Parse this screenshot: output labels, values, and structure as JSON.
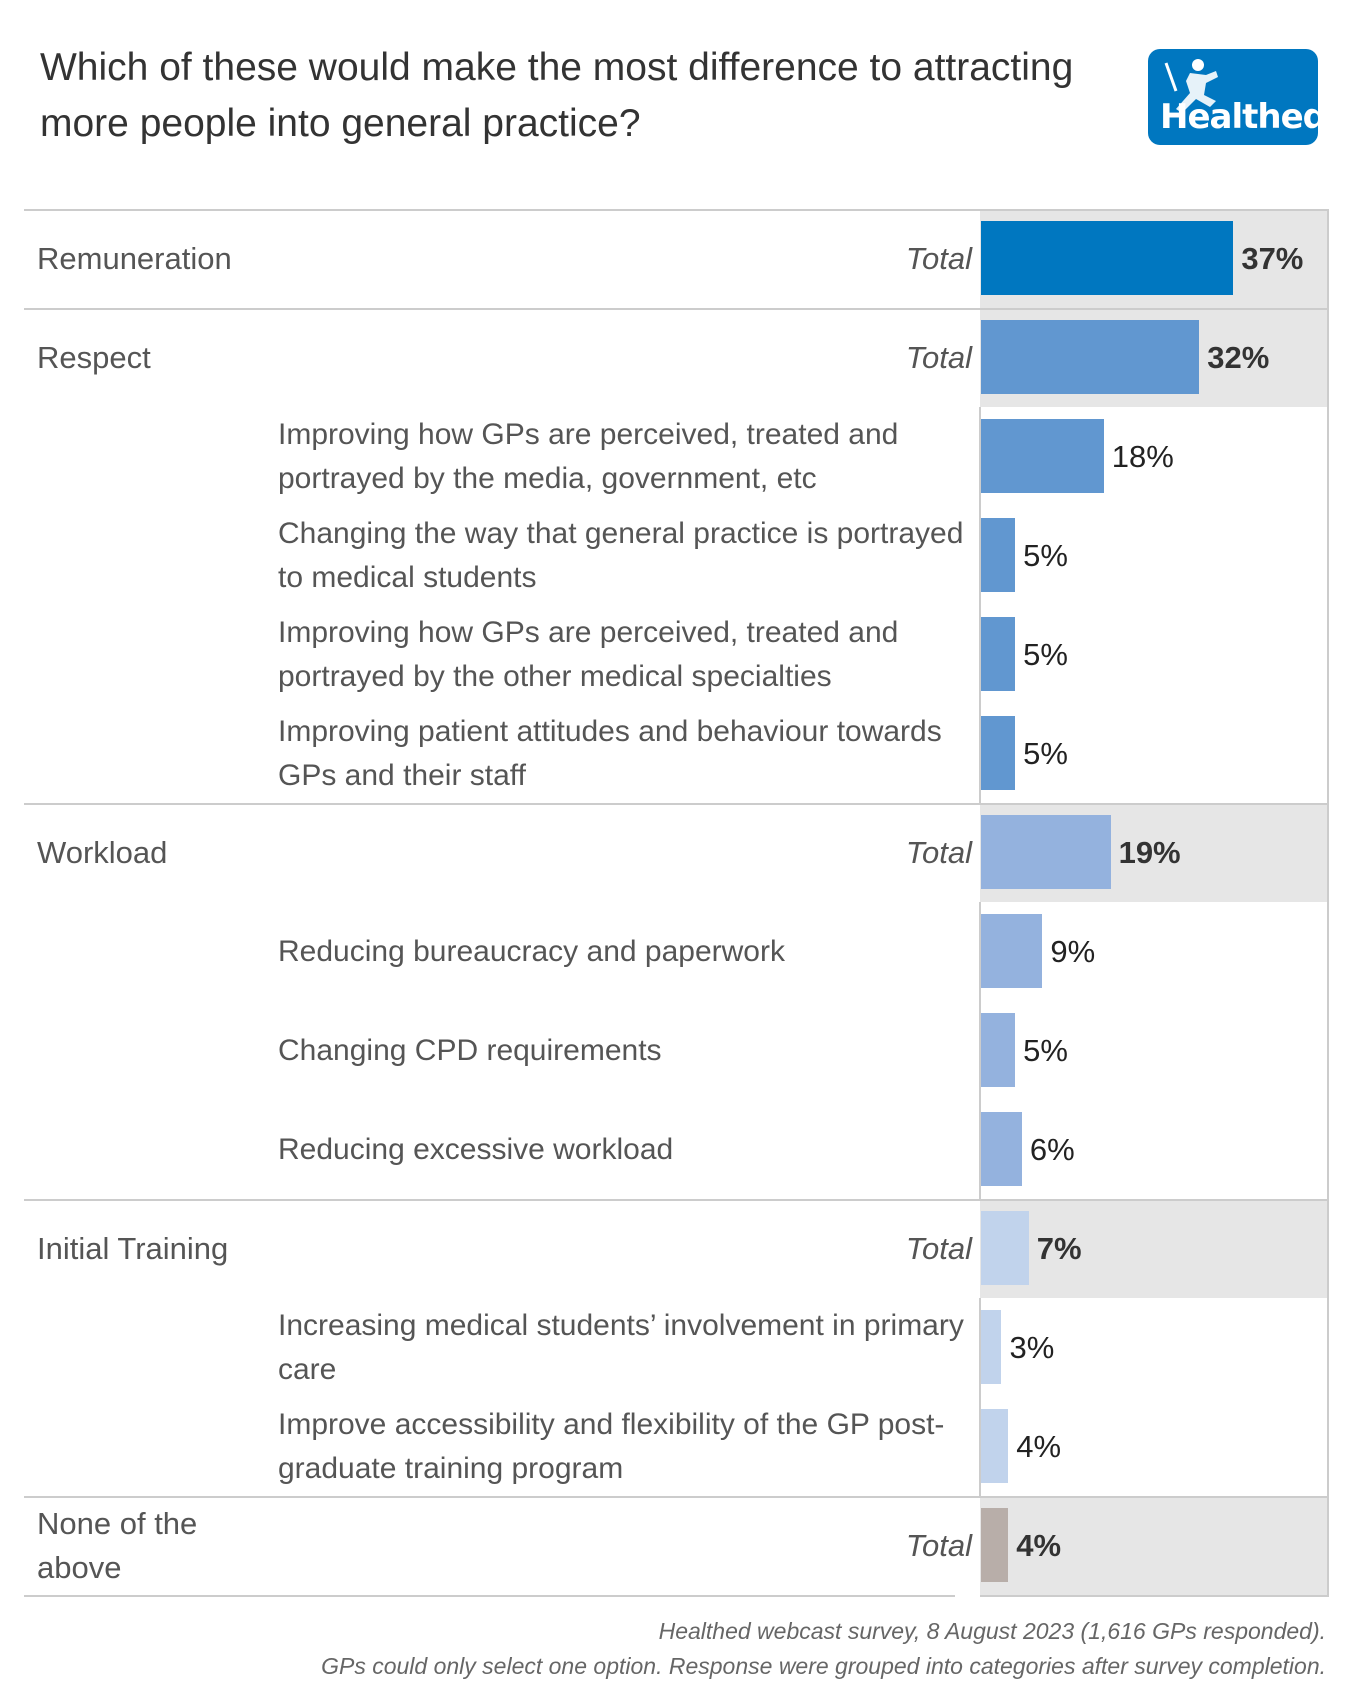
{
  "title": "Which of these would make the most difference to attracting more people into general practice?",
  "logo_text": "Healthed",
  "footer": {
    "line1": "Healthed webcast survey, 8 August 2023 (1,616 GPs responded).",
    "line2": "GPs could only select one option. Response were grouped into categories after survey completion."
  },
  "chart_data": {
    "type": "bar",
    "orientation": "horizontal",
    "title": "Which of these would make the most difference to attracting more people into general practice?",
    "unit": "%",
    "total_label": "Total",
    "groups": [
      {
        "name": "Remuneration",
        "color": "#0077c0",
        "total": 37,
        "items": []
      },
      {
        "name": "Respect",
        "color": "#6197d0",
        "total": 32,
        "items": [
          {
            "label": "Improving how GPs are perceived, treated and portrayed by the media, government, etc",
            "value": 18
          },
          {
            "label": "Changing the way that general practice is portrayed to medical students",
            "value": 5
          },
          {
            "label": "Improving how GPs are perceived, treated and portrayed by the other medical specialties",
            "value": 5
          },
          {
            "label": "Improving patient attitudes and behaviour towards GPs and their staff",
            "value": 5
          }
        ]
      },
      {
        "name": "Workload",
        "color": "#94b2de",
        "total": 19,
        "items": [
          {
            "label": "Reducing bureaucracy and paperwork",
            "value": 9
          },
          {
            "label": "Changing CPD requirements",
            "value": 5
          },
          {
            "label": "Reducing excessive workload",
            "value": 6
          }
        ]
      },
      {
        "name": "Initial Training",
        "color": "#c1d3ec",
        "total": 7,
        "items": [
          {
            "label": "Increasing medical students’ involvement in primary care",
            "value": 3
          },
          {
            "label": "Improve accessibility and flexibility of the GP post-graduate training program",
            "value": 4
          }
        ]
      },
      {
        "name": "None of the above",
        "color": "#b8aea9",
        "total": 4,
        "items": []
      }
    ]
  }
}
